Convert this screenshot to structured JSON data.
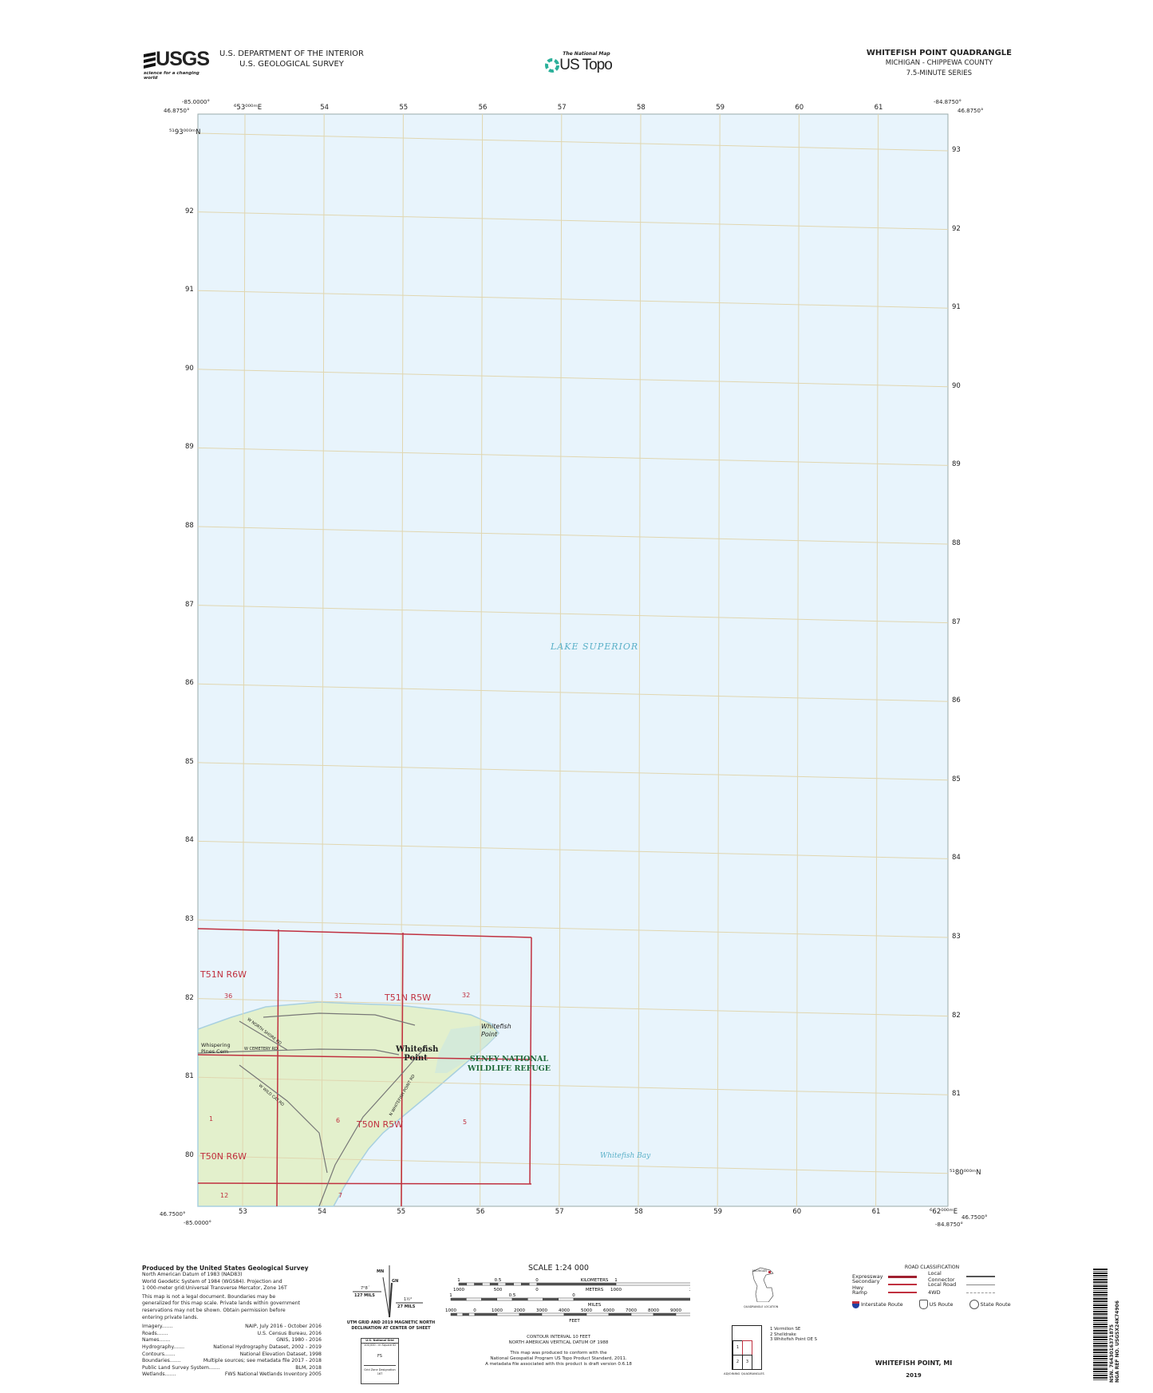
{
  "header": {
    "usgs_logo": "USGS",
    "usgs_tagline": "science for a changing world",
    "dept_line1": "U.S. DEPARTMENT OF THE INTERIOR",
    "dept_line2": "U.S. GEOLOGICAL SURVEY",
    "national_map": "The National Map",
    "us_topo": "US Topo",
    "quad_title": "WHITEFISH POINT QUADRANGLE",
    "state_county": "MICHIGAN - CHIPPEWA COUNTY",
    "series": "7.5-MINUTE SERIES"
  },
  "corners": {
    "nw_lon": "-85.0000°",
    "nw_lat": "46.8750°",
    "ne_lon": "-84.8750°",
    "ne_lat": "46.8750°",
    "sw_lon": "-85.0000°",
    "sw_lat": "46.7500°",
    "se_lon": "-84.8750°",
    "se_lat": "46.7500°"
  },
  "grid": {
    "top_easting_first": "⁶53⁰⁰⁰ᵐE",
    "eastings": [
      "53",
      "54",
      "55",
      "56",
      "57",
      "58",
      "59",
      "60",
      "61"
    ],
    "bottom_easting_last": "⁶62⁰⁰⁰ᵐE",
    "northing_first_left": "⁵¹93⁰⁰⁰ᵐN",
    "northings": [
      "93",
      "92",
      "91",
      "90",
      "89",
      "88",
      "87",
      "86",
      "85",
      "84",
      "83",
      "82",
      "81",
      "80"
    ],
    "northing_last_right": "⁵¹80⁰⁰⁰ᵐN"
  },
  "map_labels": {
    "lake": "LAKE SUPERIOR",
    "bay": "Whitefish Bay",
    "town": "Whitefish Point",
    "point": "Whitefish Point",
    "refuge_line1": "SENEY NATIONAL",
    "refuge_line2": "WILDLIFE REFUGE",
    "cemetery": "Whispering Pines Cem",
    "roads": [
      "W NORTH SHORE RD",
      "W CEMETERY RD",
      "W WILD CAT RD",
      "N WHITEFISH POINT RD"
    ],
    "townships": [
      "T51N R6W",
      "T51N R5W",
      "T50N R6W",
      "T50N R5W"
    ],
    "sections": [
      "36",
      "31",
      "32",
      "1",
      "6",
      "5",
      "12",
      "7"
    ]
  },
  "colors": {
    "water": "#e8f4fc",
    "land": "#e3f0cc",
    "plss": "#c0303f",
    "grid": "#e0d6b0",
    "refuge": "#1f6b3a"
  },
  "footer": {
    "producer": "Produced by the United States Geological Survey",
    "datum_lines": [
      "North American Datum of 1983 (NAD83)",
      "World Geodetic System of 1984 (WGS84).  Projection and",
      "1 000-meter grid:Universal Transverse Mercator, Zone 16T"
    ],
    "disclaimer": [
      "This map is not a legal document. Boundaries may be",
      "generalized for this map scale. Private lands within government",
      "reservations may not be shown. Obtain permission before",
      "entering private lands."
    ],
    "credits": [
      {
        "k": "Imagery",
        "v": "NAIP, July 2016 - October 2016"
      },
      {
        "k": "Roads",
        "v": "U.S. Census Bureau, 2016"
      },
      {
        "k": "Names",
        "v": "GNIS, 1980 - 2016"
      },
      {
        "k": "Hydrography",
        "v": "National Hydrography Dataset, 2002 - 2019"
      },
      {
        "k": "Contours",
        "v": "National Elevation Dataset, 1998"
      },
      {
        "k": "Boundaries",
        "v": "Multiple sources; see metadata file 2017 - 2018"
      },
      {
        "k": "Public Land Survey System",
        "v": "BLM, 2018"
      },
      {
        "k": "Wetlands",
        "v": "FWS National Wetlands Inventory 2005"
      }
    ],
    "declination": {
      "mn": "MN",
      "gn": "GN",
      "west_deg": "7°8´",
      "west_mils": "127 MILS",
      "east_deg": "1½°",
      "east_mils": "27 MILS",
      "caption1": "UTM GRID AND 2019 MAGNETIC NORTH",
      "caption2": "DECLINATION AT CENTER OF SHEET"
    },
    "usng": {
      "title": "U.S. National Grid",
      "sub": "100,000 - m Square ID",
      "id": "FS",
      "zone_label": "Grid Zone Designation",
      "zone": "16T"
    },
    "scale": {
      "title": "SCALE 1:24 000",
      "km_ticks": [
        "1",
        "0.5",
        "0",
        "1",
        "2"
      ],
      "km_label": "KILOMETERS",
      "m_ticks": [
        "1000",
        "500",
        "0",
        "1000",
        "2000"
      ],
      "m_label": "METERS",
      "mi_ticks": [
        "1",
        "0.5",
        "0",
        "1"
      ],
      "mi_label": "MILES",
      "ft_ticks": [
        "1000",
        "0",
        "1000",
        "2000",
        "3000",
        "4000",
        "5000",
        "6000",
        "7000",
        "8000",
        "9000",
        "10000"
      ],
      "ft_label": "FEET"
    },
    "contour1": "CONTOUR INTERVAL 10 FEET",
    "contour2": "NORTH AMERICAN VERTICAL DATUM OF 1988",
    "conform1": "This map was produced to conform with the",
    "conform2": "National Geospatial Program US Topo Product Standard, 2011.",
    "conform3": "A metadata file associated with this product is draft version 0.6.18",
    "quad_location_state": "MICHIGAN",
    "quad_location_label": "QUADRANGLE LOCATION",
    "road_class": {
      "title": "ROAD CLASSIFICATION",
      "left": [
        "Expressway",
        "Secondary Hwy",
        "Ramp"
      ],
      "right": [
        "Local Connector",
        "Local Road",
        "4WD"
      ],
      "shields": [
        "Interstate Route",
        "US Route",
        "State Route"
      ]
    },
    "adjoining": {
      "cells": [
        "1",
        "2",
        "3"
      ],
      "names": [
        "1 Vermilion SE",
        "2 Shelldrake",
        "3 Whitefish Point OE S"
      ],
      "label": "ADJOINING QUADRANGLES"
    },
    "title": "WHITEFISH POINT,  MI",
    "year": "2019",
    "nsn": "NSN. 7643016371875",
    "nga": "NGA REF NO. USGSX24K74906"
  }
}
